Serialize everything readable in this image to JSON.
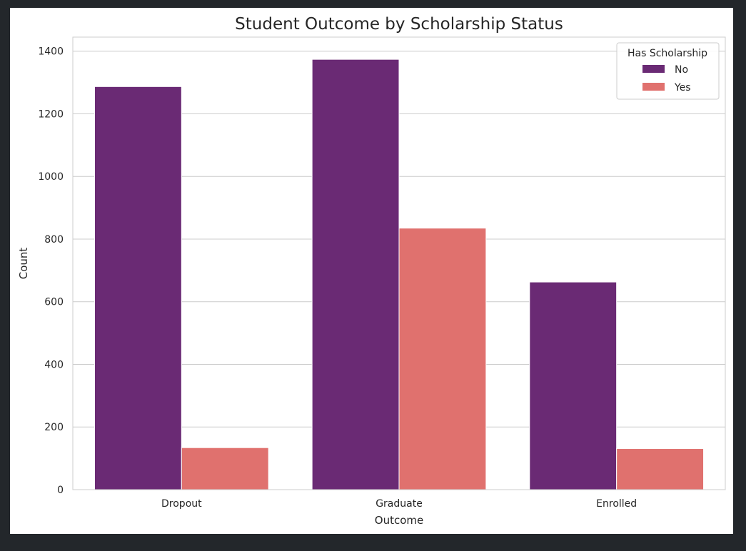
{
  "chart_data": {
    "type": "bar",
    "title": "Student Outcome by Scholarship Status",
    "xlabel": "Outcome",
    "ylabel": "Count",
    "categories": [
      "Dropout",
      "Graduate",
      "Enrolled"
    ],
    "series": [
      {
        "name": "No",
        "color": "#6a2a74",
        "values": [
          1287,
          1374,
          663
        ]
      },
      {
        "name": "Yes",
        "color": "#e0716e",
        "values": [
          134,
          835,
          131
        ]
      }
    ],
    "ylim": [
      0,
      1445
    ],
    "yticks": [
      0,
      200,
      400,
      600,
      800,
      1000,
      1200,
      1400
    ],
    "grid": true,
    "legend": {
      "title": "Has Scholarship",
      "placement": "top-right"
    }
  }
}
